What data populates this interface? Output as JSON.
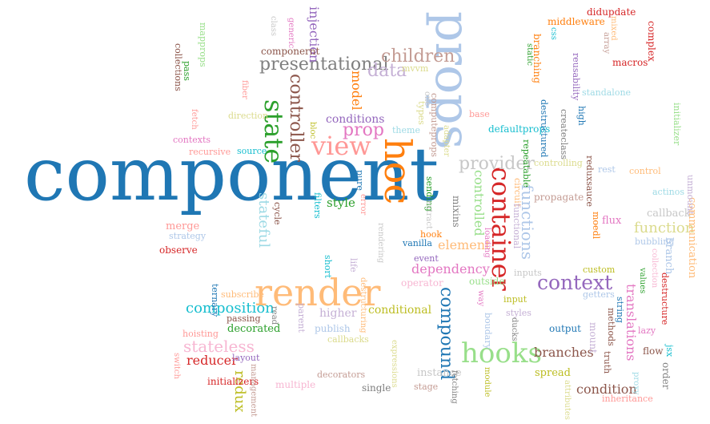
{
  "words": [
    {
      "text": "component",
      "color": "#1f77b4"
    },
    {
      "text": "props",
      "color": "#aec7e8"
    },
    {
      "text": "hoc",
      "color": "#ff7f0e"
    },
    {
      "text": "render",
      "color": "#ffbb78"
    },
    {
      "text": "container",
      "color": "#d62728"
    },
    {
      "text": "state",
      "color": "#2ca02c"
    },
    {
      "text": "view",
      "color": "#ff9896"
    },
    {
      "text": "hooks",
      "color": "#98df8a"
    },
    {
      "text": "context",
      "color": "#9467bd"
    },
    {
      "text": "presentational",
      "color": "#7f7f7f"
    },
    {
      "text": "controller",
      "color": "#8c564b"
    },
    {
      "text": "children",
      "color": "#c49c94"
    },
    {
      "text": "data",
      "color": "#c5b0d5"
    },
    {
      "text": "prop",
      "color": "#e377c2"
    },
    {
      "text": "provider",
      "color": "#c7c7c7"
    },
    {
      "text": "functions",
      "color": "#aec7e8"
    },
    {
      "text": "compound",
      "color": "#1f77b4"
    },
    {
      "text": "composition",
      "color": "#17becf"
    },
    {
      "text": "stateless",
      "color": "#f7b6d2"
    },
    {
      "text": "function",
      "color": "#dbdb8d"
    },
    {
      "text": "stateful",
      "color": "#9edae5"
    },
    {
      "text": "redux",
      "color": "#bcbd22"
    },
    {
      "text": "injection",
      "color": "#9467bd"
    },
    {
      "text": "model",
      "color": "#ff7f0e"
    },
    {
      "text": "conditions",
      "color": "#9467bd"
    },
    {
      "text": "controlled",
      "color": "#98df8a"
    },
    {
      "text": "dependency",
      "color": "#e377c2"
    },
    {
      "text": "branches",
      "color": "#8c564b"
    },
    {
      "text": "condition",
      "color": "#8c564b"
    },
    {
      "text": "translations",
      "color": "#e377c2"
    },
    {
      "text": "element",
      "color": "#ffbb78"
    },
    {
      "text": "reducer",
      "color": "#d62728"
    },
    {
      "text": "higher",
      "color": "#c5b0d5"
    },
    {
      "text": "conditional",
      "color": "#bcbd22"
    },
    {
      "text": "style",
      "color": "#2ca02c"
    },
    {
      "text": "componernt",
      "color": "#8c564b"
    },
    {
      "text": "mvvm",
      "color": "#dbdb8d"
    },
    {
      "text": "computeprops",
      "color": "#c49c94"
    },
    {
      "text": "defaultprops",
      "color": "#17becf"
    },
    {
      "text": "destructured",
      "color": "#1f77b4"
    },
    {
      "text": "createclass",
      "color": "#7f7f7f"
    },
    {
      "text": "reduxsauce",
      "color": "#8c564b"
    },
    {
      "text": "mixins",
      "color": "#7f7f7f"
    },
    {
      "text": "propagate",
      "color": "#c49c94"
    },
    {
      "text": "communication",
      "color": "#ffbb78"
    },
    {
      "text": "destructure",
      "color": "#d62728"
    },
    {
      "text": "branch",
      "color": "#aec7e8"
    },
    {
      "text": "callback",
      "color": "#c7c7c7"
    },
    {
      "text": "actinos",
      "color": "#9edae5"
    },
    {
      "text": "unmount",
      "color": "#c5b0d5"
    },
    {
      "text": "flux",
      "color": "#e377c2"
    },
    {
      "text": "moedl",
      "color": "#ff7f0e"
    },
    {
      "text": "rest",
      "color": "#aec7e8"
    },
    {
      "text": "control",
      "color": "#ffbb78"
    },
    {
      "text": "controlling",
      "color": "#dbdb8d"
    },
    {
      "text": "repeatable",
      "color": "#2ca02c"
    },
    {
      "text": "circuit",
      "color": "#ffbb78"
    },
    {
      "text": "functional",
      "color": "#c5b0d5"
    },
    {
      "text": "middleware",
      "color": "#ff7f0e"
    },
    {
      "text": "didupdate",
      "color": "#d62728"
    },
    {
      "text": "complex",
      "color": "#d62728"
    },
    {
      "text": "macros",
      "color": "#d62728"
    },
    {
      "text": "mixed",
      "color": "#ffbb78"
    },
    {
      "text": "array",
      "color": "#c49c94"
    },
    {
      "text": "css",
      "color": "#17becf"
    },
    {
      "text": "static",
      "color": "#2ca02c"
    },
    {
      "text": "branching",
      "color": "#ff7f0e"
    },
    {
      "text": "reusability",
      "color": "#9467bd"
    },
    {
      "text": "standalone",
      "color": "#9edae5"
    },
    {
      "text": "high",
      "color": "#1f77b4"
    },
    {
      "text": "initializer",
      "color": "#98df8a"
    },
    {
      "text": "base",
      "color": "#ff9896"
    },
    {
      "text": "adapter",
      "color": "#dbdb8d"
    },
    {
      "text": "types",
      "color": "#dbdb8d"
    },
    {
      "text": "theme",
      "color": "#9edae5"
    },
    {
      "text": "one",
      "color": "#c7c7c7"
    },
    {
      "text": "class",
      "color": "#c7c7c7"
    },
    {
      "text": "generic",
      "color": "#e377c2"
    },
    {
      "text": "mapprops",
      "color": "#98df8a"
    },
    {
      "text": "collections",
      "color": "#8c564b"
    },
    {
      "text": "pass",
      "color": "#2ca02c"
    },
    {
      "text": "fiber",
      "color": "#ff9896"
    },
    {
      "text": "direction",
      "color": "#dbdb8d"
    },
    {
      "text": "fetch",
      "color": "#ff9896"
    },
    {
      "text": "contexts",
      "color": "#e377c2"
    },
    {
      "text": "recursive",
      "color": "#ff9896"
    },
    {
      "text": "source",
      "color": "#17becf"
    },
    {
      "text": "bloc",
      "color": "#bcbd22"
    },
    {
      "text": "pure",
      "color": "#1f77b4"
    },
    {
      "text": "error",
      "color": "#ff9896"
    },
    {
      "text": "filters",
      "color": "#17becf"
    },
    {
      "text": "cycle",
      "color": "#2ca02c"
    },
    {
      "text": "sending",
      "color": "#c7c7c7"
    },
    {
      "text": "extract",
      "color": "#ff9896"
    },
    {
      "text": "merge",
      "color": "#aec7e8"
    },
    {
      "text": "strategy",
      "color": "#d62728"
    },
    {
      "text": "observe",
      "color": "#c7c7c7"
    },
    {
      "text": "rendering",
      "color": "#ff7f0e"
    },
    {
      "text": "hook",
      "color": "#1f77b4"
    },
    {
      "text": "vanilla",
      "color": "#e377c2"
    },
    {
      "text": "loading",
      "color": "#9467bd"
    },
    {
      "text": "event",
      "color": "#17becf"
    },
    {
      "text": "short",
      "color": "#c5b0d5"
    },
    {
      "text": "life",
      "color": "#ffbb78"
    },
    {
      "text": "destructuring",
      "color": "#f7b6d2"
    },
    {
      "text": "operator",
      "color": "#98df8a"
    },
    {
      "text": "outside",
      "color": "#c7c7c7"
    },
    {
      "text": "inputs",
      "color": "#bcbd22"
    },
    {
      "text": "custom",
      "color": "#aec7e8"
    },
    {
      "text": "bubbling",
      "color": "#f7b6d2"
    },
    {
      "text": "collection",
      "color": "#2ca02c"
    },
    {
      "text": "values",
      "color": "#aec7e8"
    },
    {
      "text": "getters",
      "color": "#1f77b4"
    },
    {
      "text": "string",
      "color": "#8c564b"
    },
    {
      "text": "methods",
      "color": "#e377c2"
    },
    {
      "text": "lazy",
      "color": "#8c564b"
    },
    {
      "text": "flow",
      "color": "#17becf"
    },
    {
      "text": "jsx",
      "color": "#7f7f7f"
    },
    {
      "text": "order",
      "color": "#c5b0d5"
    },
    {
      "text": "mount",
      "color": "#1f77b4"
    },
    {
      "text": "output",
      "color": "#7f7f7f"
    },
    {
      "text": "ducks",
      "color": "#c5b0d5"
    },
    {
      "text": "styles",
      "color": "#bcbd22"
    },
    {
      "text": "input",
      "color": "#aec7e8"
    },
    {
      "text": "boudary",
      "color": "#e377c2"
    },
    {
      "text": "way",
      "color": "#bcbd22"
    },
    {
      "text": "module",
      "color": "#8c564b"
    },
    {
      "text": "truth",
      "color": "#9edae5"
    },
    {
      "text": "proxy",
      "color": "#dbdb8d"
    },
    {
      "text": "attributes",
      "color": "#ff9896"
    },
    {
      "text": "inheritance",
      "color": "#bcbd22"
    },
    {
      "text": "spread",
      "color": "#c7c7c7"
    },
    {
      "text": "instance",
      "color": "#c49c94"
    },
    {
      "text": "stage",
      "color": "#7f7f7f"
    },
    {
      "text": "fetching",
      "color": "#7f7f7f"
    },
    {
      "text": "single",
      "color": "#dbdb8d"
    },
    {
      "text": "expressions",
      "color": "#dbdb8d"
    },
    {
      "text": "callbacks",
      "color": "#aec7e8"
    },
    {
      "text": "publish",
      "color": "#c5b0d5"
    },
    {
      "text": "parent",
      "color": "#7f7f7f"
    },
    {
      "text": "read",
      "color": "#1f77b4"
    },
    {
      "text": "ternary",
      "color": "#ffbb78"
    },
    {
      "text": "subscribe",
      "color": "#8c564b"
    },
    {
      "text": "passing",
      "color": "#2ca02c"
    },
    {
      "text": "decorated",
      "color": "#ff9896"
    },
    {
      "text": "hoisting",
      "color": "#9467bd"
    },
    {
      "text": "layout",
      "color": "#ff9896"
    },
    {
      "text": "switch",
      "color": "#d62728"
    },
    {
      "text": "initializers",
      "color": "#c49c94"
    },
    {
      "text": "management",
      "color": "#f7b6d2"
    },
    {
      "text": "multiple",
      "color": "#c49c94"
    },
    {
      "text": "decorators",
      "color": "#dbdb8d"
    }
  ]
}
